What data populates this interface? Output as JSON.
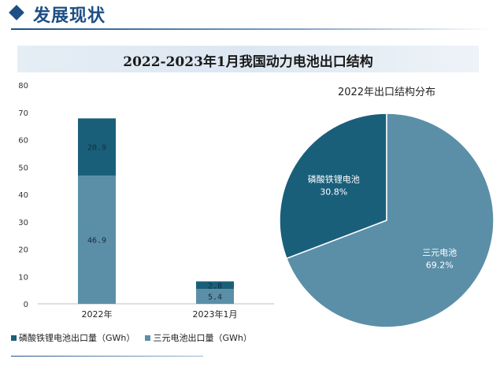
{
  "header": {
    "title": "发展现状"
  },
  "chart_data": [
    {
      "type": "bar",
      "title": "2022-2023年1月我国动力电池出口结构",
      "categories": [
        "2022年",
        "2023年1月"
      ],
      "series": [
        {
          "name": "三元电池出口量（GWh）",
          "values": [
            46.9,
            5.4
          ],
          "color": "#5b8fa8"
        },
        {
          "name": "磷酸铁锂电池出口量（GWh）",
          "values": [
            20.9,
            2.8
          ],
          "color": "#1a5f7a"
        }
      ],
      "stacked": true,
      "ylim": [
        0,
        80
      ],
      "yticks": [
        "0",
        "10",
        "20",
        "30",
        "40",
        "50",
        "60",
        "70",
        "80"
      ],
      "grid": false,
      "legend_position": "bottom"
    },
    {
      "type": "pie",
      "title": "2022年出口结构分布",
      "slices": [
        {
          "label": "磷酸铁锂电池",
          "value": 30.8,
          "value_text": "30.8%",
          "color": "#1a5f7a"
        },
        {
          "label": "三元电池",
          "value": 69.2,
          "value_text": "69.2%",
          "color": "#5b8fa8"
        }
      ]
    }
  ]
}
